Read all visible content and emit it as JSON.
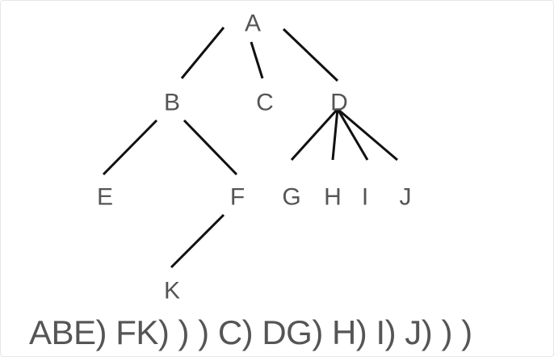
{
  "tree": {
    "nodes": [
      {
        "id": "A",
        "label": "A"
      },
      {
        "id": "B",
        "label": "B"
      },
      {
        "id": "C",
        "label": "C"
      },
      {
        "id": "D",
        "label": "D"
      },
      {
        "id": "E",
        "label": "E"
      },
      {
        "id": "F",
        "label": "F"
      },
      {
        "id": "G",
        "label": "G"
      },
      {
        "id": "H",
        "label": "H"
      },
      {
        "id": "I",
        "label": "I"
      },
      {
        "id": "J",
        "label": "J"
      },
      {
        "id": "K",
        "label": "K"
      }
    ],
    "edges": [
      [
        "A",
        "B"
      ],
      [
        "A",
        "C"
      ],
      [
        "A",
        "D"
      ],
      [
        "B",
        "E"
      ],
      [
        "B",
        "F"
      ],
      [
        "F",
        "K"
      ],
      [
        "D",
        "G"
      ],
      [
        "D",
        "H"
      ],
      [
        "D",
        "I"
      ],
      [
        "D",
        "J"
      ]
    ],
    "colors": {
      "edge": "#111111",
      "label": "#555555"
    }
  },
  "sequence": {
    "text": "ABE) FK) ) ) C) DG) H) I) J) ) )"
  }
}
